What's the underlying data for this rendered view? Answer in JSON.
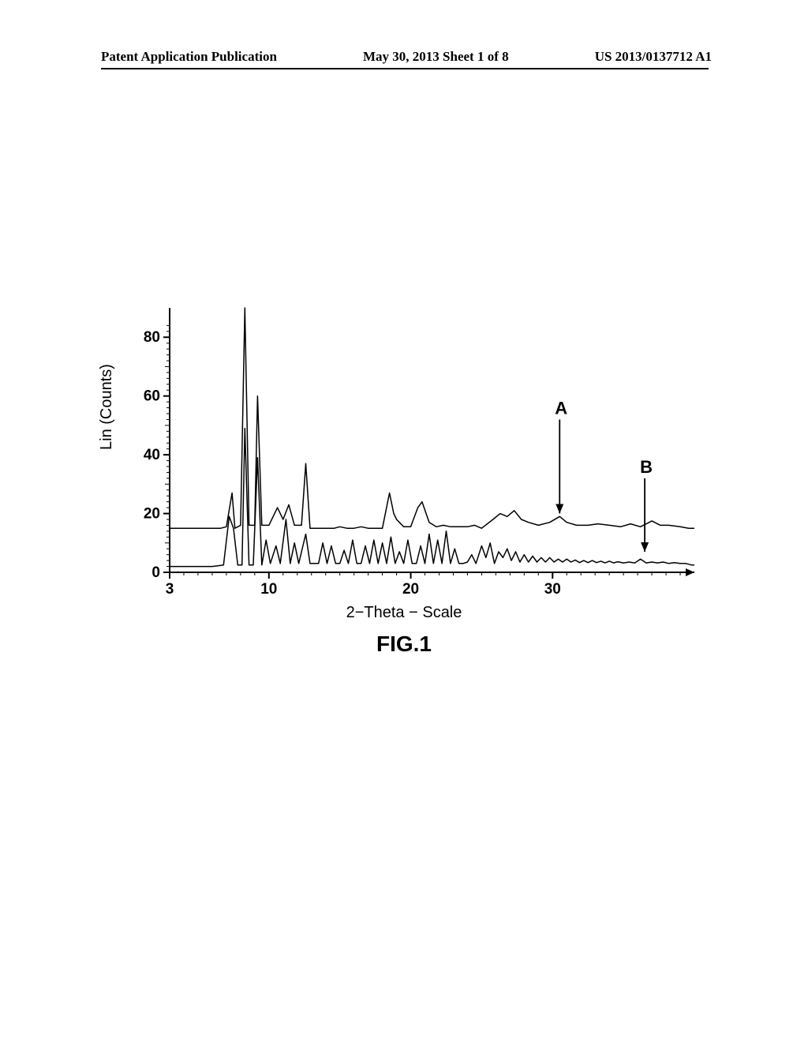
{
  "header": {
    "left": "Patent Application Publication",
    "center": "May 30, 2013  Sheet 1 of 8",
    "right": "US 2013/0137712 A1"
  },
  "figure": {
    "caption": "FIG.1",
    "xlabel": "2−Theta  −  Scale",
    "ylabel": "Lin  (Counts)",
    "yticks": [
      0,
      20,
      40,
      60,
      80
    ],
    "xticks": [
      3,
      10,
      20,
      30
    ],
    "xlim": [
      3,
      40
    ],
    "ylim": [
      0,
      90
    ],
    "line_color": "#000000",
    "line_width": 1.5,
    "background_color": "#ffffff",
    "tick_len_major": 8,
    "tick_len_minor": 4,
    "series": [
      {
        "label": "A",
        "arrow": {
          "x": 30.5,
          "y_top": 52,
          "y_bottom": 20
        },
        "data": [
          [
            3,
            15
          ],
          [
            4,
            15
          ],
          [
            5,
            15
          ],
          [
            6,
            15
          ],
          [
            6.6,
            15
          ],
          [
            7,
            15.5
          ],
          [
            7.4,
            27
          ],
          [
            7.6,
            15
          ],
          [
            8,
            16
          ],
          [
            8.3,
            90
          ],
          [
            8.6,
            16
          ],
          [
            9,
            16
          ],
          [
            9.2,
            60
          ],
          [
            9.5,
            16
          ],
          [
            10,
            16
          ],
          [
            10.6,
            22
          ],
          [
            11,
            18
          ],
          [
            11.4,
            23
          ],
          [
            11.8,
            16
          ],
          [
            12.3,
            16
          ],
          [
            12.6,
            37
          ],
          [
            12.9,
            15
          ],
          [
            13.5,
            15
          ],
          [
            14,
            15
          ],
          [
            14.6,
            15
          ],
          [
            15,
            15.5
          ],
          [
            15.5,
            15
          ],
          [
            16,
            15
          ],
          [
            16.5,
            15.5
          ],
          [
            17,
            15
          ],
          [
            17.5,
            15
          ],
          [
            18,
            15
          ],
          [
            18.5,
            27
          ],
          [
            18.8,
            20
          ],
          [
            19,
            18
          ],
          [
            19.5,
            15.5
          ],
          [
            20,
            15.5
          ],
          [
            20.5,
            22
          ],
          [
            20.8,
            24
          ],
          [
            21.3,
            17
          ],
          [
            21.8,
            15.5
          ],
          [
            22.3,
            16
          ],
          [
            22.8,
            15.5
          ],
          [
            23.5,
            15.5
          ],
          [
            24,
            15.5
          ],
          [
            24.5,
            16
          ],
          [
            25,
            15
          ],
          [
            25.8,
            18
          ],
          [
            26.3,
            20
          ],
          [
            26.8,
            19
          ],
          [
            27.3,
            21
          ],
          [
            27.8,
            18
          ],
          [
            28.3,
            17
          ],
          [
            29,
            16
          ],
          [
            29.8,
            17
          ],
          [
            30.5,
            19
          ],
          [
            31,
            17
          ],
          [
            31.7,
            16
          ],
          [
            32.5,
            16
          ],
          [
            33.2,
            16.5
          ],
          [
            34,
            16
          ],
          [
            34.8,
            15.5
          ],
          [
            35.5,
            16.5
          ],
          [
            36.2,
            15.5
          ],
          [
            37,
            17.5
          ],
          [
            37.6,
            16
          ],
          [
            38.2,
            16
          ],
          [
            39,
            15.5
          ],
          [
            39.6,
            15
          ],
          [
            40,
            15
          ]
        ]
      },
      {
        "label": "B",
        "arrow": {
          "x": 36.5,
          "y_top": 32,
          "y_bottom": 7
        },
        "data": [
          [
            3,
            2
          ],
          [
            4,
            2
          ],
          [
            5,
            2
          ],
          [
            5.5,
            2
          ],
          [
            6,
            2
          ],
          [
            6.4,
            2.2
          ],
          [
            6.8,
            2.5
          ],
          [
            7.2,
            19
          ],
          [
            7.5,
            15
          ],
          [
            7.8,
            2.5
          ],
          [
            8.1,
            2.5
          ],
          [
            8.3,
            49
          ],
          [
            8.6,
            2.5
          ],
          [
            8.9,
            2.5
          ],
          [
            9.2,
            39
          ],
          [
            9.5,
            2.5
          ],
          [
            9.8,
            11
          ],
          [
            10.1,
            3
          ],
          [
            10.5,
            9
          ],
          [
            10.8,
            3
          ],
          [
            11.2,
            18
          ],
          [
            11.5,
            3
          ],
          [
            11.8,
            10
          ],
          [
            12.1,
            3
          ],
          [
            12.4,
            9
          ],
          [
            12.6,
            13
          ],
          [
            12.9,
            3
          ],
          [
            13.2,
            3
          ],
          [
            13.5,
            3
          ],
          [
            13.8,
            10
          ],
          [
            14.1,
            3
          ],
          [
            14.4,
            9
          ],
          [
            14.7,
            3
          ],
          [
            15,
            3
          ],
          [
            15.3,
            7.5
          ],
          [
            15.6,
            3
          ],
          [
            15.9,
            11
          ],
          [
            16.2,
            3
          ],
          [
            16.5,
            3
          ],
          [
            16.8,
            9
          ],
          [
            17.1,
            3
          ],
          [
            17.4,
            11
          ],
          [
            17.7,
            3
          ],
          [
            18,
            10
          ],
          [
            18.3,
            3
          ],
          [
            18.6,
            12
          ],
          [
            18.9,
            3
          ],
          [
            19.2,
            7
          ],
          [
            19.5,
            3
          ],
          [
            19.8,
            11
          ],
          [
            20.1,
            3
          ],
          [
            20.4,
            3
          ],
          [
            20.7,
            9
          ],
          [
            21,
            3
          ],
          [
            21.3,
            13
          ],
          [
            21.6,
            3
          ],
          [
            21.9,
            11
          ],
          [
            22.2,
            3
          ],
          [
            22.5,
            14
          ],
          [
            22.8,
            3
          ],
          [
            23.1,
            8
          ],
          [
            23.4,
            3
          ],
          [
            23.7,
            3
          ],
          [
            24,
            3.5
          ],
          [
            24.3,
            6
          ],
          [
            24.6,
            3
          ],
          [
            25,
            9
          ],
          [
            25.3,
            5
          ],
          [
            25.6,
            10
          ],
          [
            25.9,
            3
          ],
          [
            26.2,
            7
          ],
          [
            26.5,
            5
          ],
          [
            26.8,
            8
          ],
          [
            27.1,
            4
          ],
          [
            27.4,
            7
          ],
          [
            27.7,
            3.5
          ],
          [
            28,
            6
          ],
          [
            28.3,
            3.5
          ],
          [
            28.6,
            5.5
          ],
          [
            28.9,
            3.5
          ],
          [
            29.2,
            5
          ],
          [
            29.5,
            3.5
          ],
          [
            29.8,
            5
          ],
          [
            30.1,
            3.5
          ],
          [
            30.4,
            4.5
          ],
          [
            30.7,
            3.5
          ],
          [
            31,
            4.5
          ],
          [
            31.3,
            3.5
          ],
          [
            31.6,
            4.2
          ],
          [
            31.9,
            3.3
          ],
          [
            32.2,
            4
          ],
          [
            32.5,
            3.3
          ],
          [
            32.8,
            4
          ],
          [
            33.1,
            3.3
          ],
          [
            33.4,
            3.8
          ],
          [
            33.7,
            3.2
          ],
          [
            34,
            3.8
          ],
          [
            34.3,
            3.2
          ],
          [
            34.6,
            3.6
          ],
          [
            35,
            3.2
          ],
          [
            35.4,
            3.5
          ],
          [
            35.8,
            3.2
          ],
          [
            36.2,
            4.5
          ],
          [
            36.6,
            3.2
          ],
          [
            37,
            3.5
          ],
          [
            37.4,
            3.2
          ],
          [
            37.8,
            3.5
          ],
          [
            38.2,
            3
          ],
          [
            38.6,
            3.3
          ],
          [
            39,
            3
          ],
          [
            39.4,
            3
          ],
          [
            39.8,
            2.5
          ],
          [
            40,
            2.5
          ]
        ]
      }
    ]
  }
}
